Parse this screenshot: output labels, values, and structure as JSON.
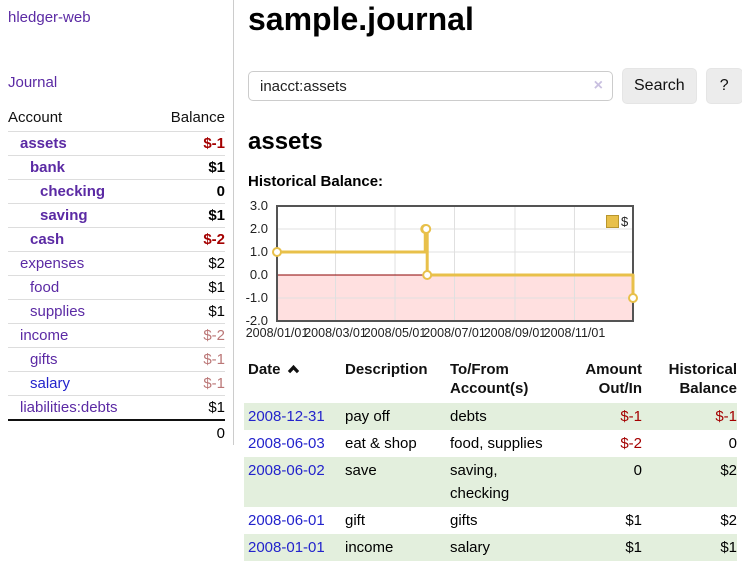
{
  "colors": {
    "link_purple": "#5b2aa4",
    "link_blue": "#2323cc",
    "negative_strong": "#a40000",
    "negative_muted": "#bb7777",
    "row_stripe_green": "#e3efdd",
    "chart_line": "#e8c04a",
    "chart_zero_line": "#8b0000",
    "chart_border": "#545454",
    "chart_negative_fill": "rgba(255,0,0,0.12)"
  },
  "sidebar": {
    "brand": "hledger-web",
    "journal_link": "Journal",
    "accounts_table": {
      "headers": [
        "Account",
        "Balance"
      ],
      "rows": [
        {
          "label": "assets",
          "depth": 1,
          "bold": true,
          "link_color": "purple",
          "balance": "$-1",
          "balance_color": "negative"
        },
        {
          "label": "bank",
          "depth": 2,
          "bold": true,
          "link_color": "purple",
          "balance": "$1",
          "balance_color": "normal"
        },
        {
          "label": "checking",
          "depth": 3,
          "bold": true,
          "link_color": "purple",
          "balance": "0",
          "balance_color": "normal"
        },
        {
          "label": "saving",
          "depth": 3,
          "bold": true,
          "link_color": "purple",
          "balance": "$1",
          "balance_color": "normal"
        },
        {
          "label": "cash",
          "depth": 2,
          "bold": true,
          "link_color": "purple",
          "balance": "$-2",
          "balance_color": "negative"
        },
        {
          "label": "expenses",
          "depth": 1,
          "bold": false,
          "link_color": "purple",
          "balance": "$2",
          "balance_color": "normal"
        },
        {
          "label": "food",
          "depth": 2,
          "bold": false,
          "link_color": "purple",
          "balance": "$1",
          "balance_color": "normal"
        },
        {
          "label": "supplies",
          "depth": 2,
          "bold": false,
          "link_color": "purple",
          "balance": "$1",
          "balance_color": "normal"
        },
        {
          "label": "income",
          "depth": 1,
          "bold": false,
          "link_color": "purple",
          "balance": "$-2",
          "balance_color": "negative_muted"
        },
        {
          "label": "gifts",
          "depth": 2,
          "bold": false,
          "link_color": "purple",
          "balance": "$-1",
          "balance_color": "negative_muted"
        },
        {
          "label": "salary",
          "depth": 2,
          "bold": false,
          "link_color": "blue",
          "balance": "$-1",
          "balance_color": "negative_muted"
        },
        {
          "label": "liabilities:debts",
          "depth": 1,
          "bold": false,
          "link_color": "purple",
          "balance": "$1",
          "balance_color": "normal"
        }
      ],
      "total": "0"
    }
  },
  "main": {
    "title": "sample.journal",
    "search": {
      "value": "inacct:assets",
      "clear_icon": "×",
      "button_label": "Search",
      "help_label": "?"
    },
    "account_heading": "assets",
    "chart_title": "Historical Balance:"
  },
  "register": {
    "headers": {
      "date": "Date",
      "date_sort_icon": "chevron-up-icon",
      "description": "Description",
      "account_lines": [
        "To/From",
        "Account(s)"
      ],
      "amount_lines": [
        "Amount",
        "Out/In"
      ],
      "balance_lines": [
        "Historical",
        "Balance"
      ]
    },
    "rows": [
      {
        "date": "2008-12-31",
        "description": "pay off",
        "account_lines": [
          "debts"
        ],
        "amount": "$-1",
        "amount_negative": true,
        "balance": "$-1",
        "balance_negative": true
      },
      {
        "date": "2008-06-03",
        "description": "eat & shop",
        "account_lines": [
          "food, supplies"
        ],
        "amount": "$-2",
        "amount_negative": true,
        "balance": "0",
        "balance_negative": false
      },
      {
        "date": "2008-06-02",
        "description": "save",
        "account_lines": [
          "saving,",
          "checking"
        ],
        "amount": "0",
        "amount_negative": false,
        "balance": "$2",
        "balance_negative": false
      },
      {
        "date": "2008-06-01",
        "description": "gift",
        "account_lines": [
          "gifts"
        ],
        "amount": "$1",
        "amount_negative": false,
        "balance": "$2",
        "balance_negative": false
      },
      {
        "date": "2008-01-01",
        "description": "income",
        "account_lines": [
          "salary"
        ],
        "amount": "$1",
        "amount_negative": false,
        "balance": "$1",
        "balance_negative": false
      }
    ]
  },
  "chart_data": {
    "type": "line",
    "step": true,
    "title": "Historical Balance:",
    "legend": "$",
    "legend_position": "top-right",
    "grid": true,
    "negative_region_shaded": true,
    "x_type": "date",
    "x_range": [
      "2008-01-01",
      "2008-12-31"
    ],
    "ylim": [
      -2.0,
      3.0
    ],
    "y_ticks": [
      3.0,
      2.0,
      1.0,
      0.0,
      -1.0,
      -2.0
    ],
    "x_tick_dates": [
      "2008-01-01",
      "2008-03-01",
      "2008-05-01",
      "2008-07-01",
      "2008-09-01",
      "2008-11-01"
    ],
    "x_tick_labels": [
      "2008/01/01",
      "2008/03/01",
      "2008/05/01",
      "2008/07/01",
      "2008/09/01",
      "2008/11/01"
    ],
    "series": [
      {
        "name": "$",
        "points": [
          [
            "2008-01-01",
            1
          ],
          [
            "2008-06-01",
            2
          ],
          [
            "2008-06-02",
            2
          ],
          [
            "2008-06-03",
            0
          ],
          [
            "2008-12-31",
            -1
          ]
        ]
      }
    ]
  }
}
